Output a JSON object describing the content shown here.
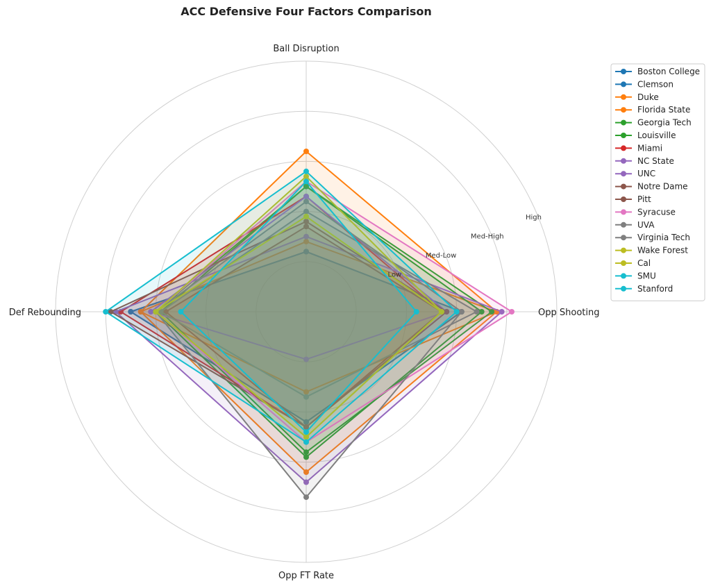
{
  "chart_data": {
    "type": "radar",
    "title": "ACC Defensive Four Factors Comparison",
    "axes": [
      "Ball Disruption",
      "Opp Shooting",
      "Opp FT Rate",
      "Def Rebounding"
    ],
    "rmax": 5,
    "ring_values": [
      1,
      2,
      3,
      4,
      5
    ],
    "ring_labels": [
      "Low",
      "Med-Low",
      "Med-High",
      "High"
    ],
    "grid": true,
    "legend_position": "right",
    "series": [
      {
        "name": "Boston College",
        "color": "#1f77b4",
        "values": [
          1.2,
          3.1,
          2.2,
          3.5
        ]
      },
      {
        "name": "Clemson",
        "color": "#1f77b4",
        "values": [
          1.2,
          3.1,
          2.2,
          3.5
        ]
      },
      {
        "name": "Duke",
        "color": "#ff7f0e",
        "values": [
          3.2,
          3.8,
          3.2,
          3.3
        ]
      },
      {
        "name": "Florida State",
        "color": "#ff7f0e",
        "values": [
          1.4,
          3.8,
          1.6,
          3.3
        ]
      },
      {
        "name": "Georgia Tech",
        "color": "#2ca02c",
        "values": [
          2.5,
          3.5,
          2.9,
          3.0
        ]
      },
      {
        "name": "Louisville",
        "color": "#2ca02c",
        "values": [
          2.5,
          3.7,
          2.8,
          2.9
        ]
      },
      {
        "name": "Miami",
        "color": "#d62728",
        "values": [
          2.3,
          2.7,
          2.3,
          3.7
        ]
      },
      {
        "name": "NC State",
        "color": "#9467bd",
        "values": [
          1.5,
          3.9,
          3.4,
          3.8
        ]
      },
      {
        "name": "UNC",
        "color": "#9467bd",
        "values": [
          2.3,
          2.8,
          0.95,
          3.1
        ]
      },
      {
        "name": "Notre Dame",
        "color": "#8c564b",
        "values": [
          1.8,
          2.8,
          2.3,
          3.9
        ]
      },
      {
        "name": "Pitt",
        "color": "#8c564b",
        "values": [
          1.7,
          2.7,
          2.3,
          2.8
        ]
      },
      {
        "name": "Syracuse",
        "color": "#e377c2",
        "values": [
          2.6,
          4.1,
          2.6,
          3.0
        ]
      },
      {
        "name": "UVA",
        "color": "#7f7f7f",
        "values": [
          2.2,
          3.1,
          3.7,
          3.0
        ]
      },
      {
        "name": "Virginia Tech",
        "color": "#7f7f7f",
        "values": [
          2.0,
          3.4,
          1.7,
          2.9
        ]
      },
      {
        "name": "Wake Forest",
        "color": "#bcbd22",
        "values": [
          1.9,
          2.7,
          2.5,
          3.0
        ]
      },
      {
        "name": "Cal",
        "color": "#bcbd22",
        "values": [
          2.7,
          2.7,
          2.5,
          3.0
        ]
      },
      {
        "name": "SMU",
        "color": "#17becf",
        "values": [
          2.8,
          3.0,
          2.6,
          4.0
        ]
      },
      {
        "name": "Stanford",
        "color": "#17becf",
        "values": [
          2.6,
          2.2,
          2.4,
          2.5
        ]
      }
    ]
  }
}
